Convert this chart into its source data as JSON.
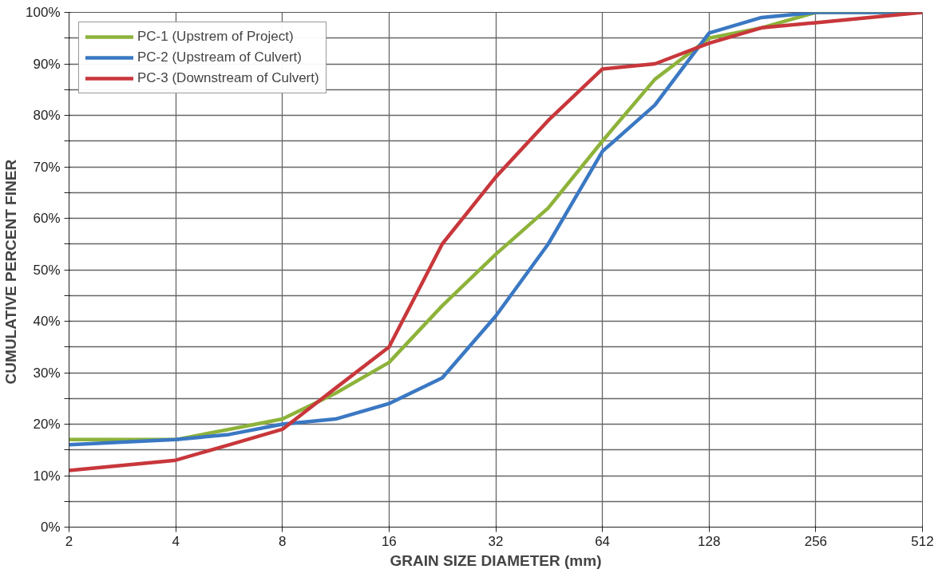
{
  "chart_data": {
    "type": "line",
    "xlabel": "GRAIN SIZE DIAMETER (mm)",
    "ylabel": "CUMULATIVE  PERCENT FINER",
    "log": "x",
    "x": [
      2,
      4,
      5.66,
      8,
      11.3,
      16,
      22.6,
      32,
      45,
      64,
      90,
      128,
      180,
      256,
      512
    ],
    "series": [
      {
        "name": "PC-1 (Upstrem of Project)",
        "color": "#8db33a",
        "values": [
          17,
          17,
          19,
          21,
          26,
          32,
          43,
          53,
          62,
          75,
          87,
          95,
          97,
          100,
          100
        ]
      },
      {
        "name": "PC-2 (Upstream of Culvert)",
        "color": "#3a78c3",
        "values": [
          16,
          17,
          18,
          20,
          21,
          24,
          29,
          41,
          55,
          73,
          82,
          96,
          99,
          100,
          100
        ]
      },
      {
        "name": "PC-3 (Downstream of Culvert)",
        "color": "#c8373b",
        "values": [
          11,
          13,
          16,
          19,
          27,
          35,
          55,
          68,
          79,
          89,
          90,
          94,
          97,
          98,
          100
        ]
      }
    ],
    "xlim": [
      2,
      512
    ],
    "xticks": [
      2,
      4,
      8,
      16,
      32,
      64,
      128,
      256,
      512
    ],
    "ylim": [
      0,
      100
    ],
    "yticks": [
      {
        "value": 0,
        "label": "0%"
      },
      {
        "value": 5,
        "label": null
      },
      {
        "value": 10,
        "label": "10%"
      },
      {
        "value": 15,
        "label": null
      },
      {
        "value": 20,
        "label": "20%"
      },
      {
        "value": 25,
        "label": null
      },
      {
        "value": 30,
        "label": "30%"
      },
      {
        "value": 35,
        "label": null
      },
      {
        "value": 40,
        "label": "40%"
      },
      {
        "value": 45,
        "label": null
      },
      {
        "value": 50,
        "label": "50%"
      },
      {
        "value": 55,
        "label": null
      },
      {
        "value": 60,
        "label": "60%"
      },
      {
        "value": 65,
        "label": null
      },
      {
        "value": 70,
        "label": "70%"
      },
      {
        "value": 75,
        "label": null
      },
      {
        "value": 80,
        "label": "80%"
      },
      {
        "value": 85,
        "label": null
      },
      {
        "value": 90,
        "label": "90%"
      },
      {
        "value": 95,
        "label": null
      },
      {
        "value": 100,
        "label": "100%"
      }
    ],
    "grid": true,
    "legend": "top left",
    "marker": "none",
    "line_style": "solid"
  }
}
